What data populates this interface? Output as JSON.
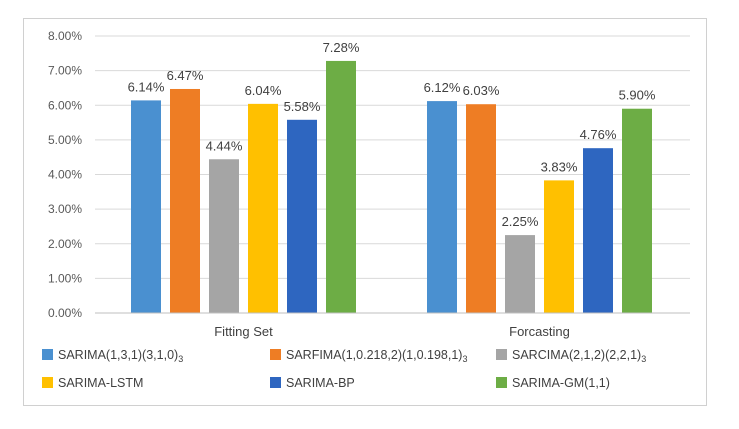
{
  "chart_data": {
    "type": "bar",
    "title": "",
    "xlabel": "",
    "ylabel": "",
    "categories": [
      "Fitting Set",
      "Forcasting"
    ],
    "ylim": [
      0,
      8
    ],
    "yticks": [
      "0.00%",
      "1.00%",
      "2.00%",
      "3.00%",
      "4.00%",
      "5.00%",
      "6.00%",
      "7.00%",
      "8.00%"
    ],
    "grid": true,
    "legend_position": "bottom",
    "series": [
      {
        "name": "SARIMA(1,3,1)(3,1,0)",
        "subscript": "3",
        "color": "#4a90d0",
        "values": [
          6.14,
          6.12
        ],
        "labels": [
          "6.14%",
          "6.12%"
        ]
      },
      {
        "name": "SARFIMA(1,0.218,2)(1,0.198,1)",
        "subscript": "3",
        "color": "#ee7d24",
        "values": [
          6.47,
          6.03
        ],
        "labels": [
          "6.47%",
          "6.03%"
        ]
      },
      {
        "name": "SARCIMA(2,1,2)(2,2,1)",
        "subscript": "3",
        "color": "#a5a5a5",
        "values": [
          4.44,
          2.25
        ],
        "labels": [
          "4.44%",
          "2.25%"
        ]
      },
      {
        "name": "SARIMA-LSTM",
        "subscript": "",
        "color": "#ffc000",
        "values": [
          6.04,
          3.83
        ],
        "labels": [
          "6.04%",
          "3.83%"
        ]
      },
      {
        "name": "SARIMA-BP",
        "subscript": "",
        "color": "#2e66c0",
        "values": [
          5.58,
          4.76
        ],
        "labels": [
          "5.58%",
          "4.76%"
        ]
      },
      {
        "name": "SARIMA-GM(1,1)",
        "subscript": "",
        "color": "#6dad45",
        "values": [
          7.28,
          5.9
        ],
        "labels": [
          "7.28%",
          "5.90%"
        ]
      }
    ]
  }
}
